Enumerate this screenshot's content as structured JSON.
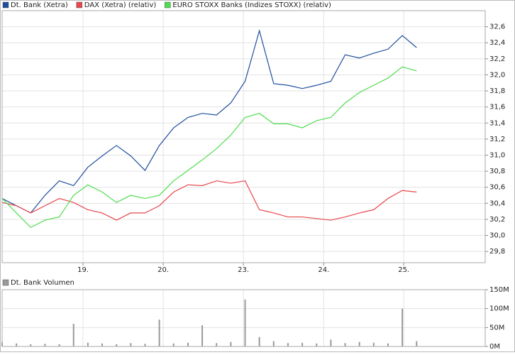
{
  "chart_data": [
    {
      "type": "line",
      "x": [
        0,
        1,
        2,
        3,
        4,
        5,
        6,
        7,
        8,
        9,
        10,
        11,
        12,
        13,
        14,
        15,
        16,
        17,
        18,
        19,
        20,
        21,
        22,
        23,
        24,
        25,
        26,
        27,
        28,
        29
      ],
      "xlim": [
        0,
        33.8
      ],
      "xticks": [
        {
          "value": 5.66,
          "label": "19."
        },
        {
          "value": 11.27,
          "label": "20."
        },
        {
          "value": 16.88,
          "label": "23."
        },
        {
          "value": 22.5,
          "label": "24."
        },
        {
          "value": 28.1,
          "label": "25."
        }
      ],
      "ylim": [
        29.66,
        32.8
      ],
      "yticks": [
        {
          "value": 29.8,
          "label": "29,8"
        },
        {
          "value": 30.0,
          "label": "30,0"
        },
        {
          "value": 30.2,
          "label": "30,2"
        },
        {
          "value": 30.4,
          "label": "30,4"
        },
        {
          "value": 30.6,
          "label": "30,6"
        },
        {
          "value": 30.8,
          "label": "30,8"
        },
        {
          "value": 31.0,
          "label": "31,0"
        },
        {
          "value": 31.2,
          "label": "31,2"
        },
        {
          "value": 31.4,
          "label": "31,4"
        },
        {
          "value": 31.6,
          "label": "31,6"
        },
        {
          "value": 31.8,
          "label": "31,8"
        },
        {
          "value": 32.0,
          "label": "32,0"
        },
        {
          "value": 32.2,
          "label": "32,2"
        },
        {
          "value": 32.4,
          "label": "32,4"
        },
        {
          "value": 32.6,
          "label": "32,6"
        }
      ],
      "grid": true,
      "series": [
        {
          "name": "Dt. Bank (Xetra)",
          "color": "#1f4e9c",
          "area": true,
          "values": [
            30.46,
            30.37,
            30.28,
            30.5,
            30.68,
            30.62,
            30.85,
            30.99,
            31.12,
            30.99,
            30.81,
            31.12,
            31.34,
            31.47,
            31.52,
            31.5,
            31.65,
            31.92,
            32.55,
            31.89,
            31.87,
            31.83,
            31.87,
            31.92,
            32.25,
            32.21,
            32.27,
            32.32,
            32.49,
            32.34
          ]
        },
        {
          "name": "DAX (Xetra) (relativ)",
          "color": "#e8474c",
          "values": [
            30.41,
            30.37,
            30.28,
            30.37,
            30.46,
            30.41,
            30.32,
            30.28,
            30.19,
            30.28,
            30.28,
            30.37,
            30.54,
            30.63,
            30.62,
            30.68,
            30.65,
            30.68,
            30.32,
            30.28,
            30.23,
            30.23,
            30.21,
            30.19,
            30.23,
            30.28,
            30.32,
            30.46,
            30.56,
            30.54
          ]
        },
        {
          "name": "EURO STOXX Banks (Indizes STOXX) (relativ)",
          "color": "#4fdc4f",
          "values": [
            30.46,
            30.28,
            30.1,
            30.19,
            30.23,
            30.5,
            30.63,
            30.54,
            30.41,
            30.5,
            30.46,
            30.5,
            30.68,
            30.81,
            30.94,
            31.08,
            31.25,
            31.47,
            31.52,
            31.39,
            31.39,
            31.34,
            31.43,
            31.47,
            31.65,
            31.78,
            31.87,
            31.96,
            32.1,
            32.05
          ]
        }
      ]
    },
    {
      "type": "bar",
      "x": [
        0,
        1,
        2,
        3,
        4,
        5,
        6,
        7,
        8,
        9,
        10,
        11,
        12,
        13,
        14,
        15,
        16,
        17,
        18,
        19,
        20,
        21,
        22,
        23,
        24,
        25,
        26,
        27,
        28,
        29
      ],
      "xlim": [
        0,
        33.8
      ],
      "xticks": [
        5.66,
        11.27,
        16.88,
        22.5,
        28.1
      ],
      "ylim": [
        0,
        150
      ],
      "yticks": [
        {
          "value": 0,
          "label": "0M"
        },
        {
          "value": 50,
          "label": "50M"
        },
        {
          "value": 100,
          "label": "100M"
        },
        {
          "value": 150,
          "label": "150M"
        }
      ],
      "grid": true,
      "series": [
        {
          "name": "Dt. Bank Volumen",
          "color": "#9a9a9a",
          "values": [
            12,
            8,
            6,
            7,
            6,
            60,
            10,
            8,
            6,
            9,
            7,
            71,
            8,
            10,
            56,
            9,
            12,
            124,
            25,
            14,
            9,
            10,
            8,
            18,
            9,
            12,
            10,
            8,
            100,
            14
          ]
        }
      ]
    }
  ]
}
